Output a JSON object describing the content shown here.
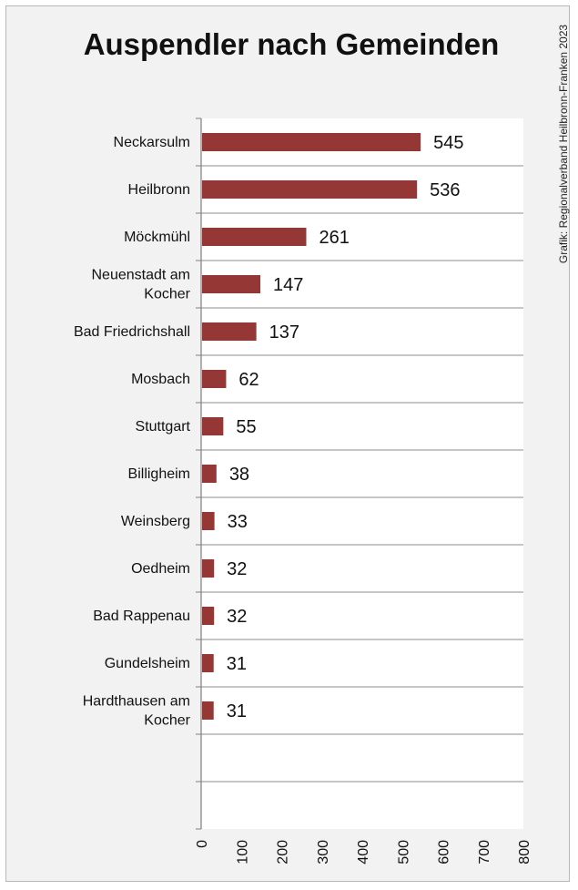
{
  "chart_data": {
    "type": "bar",
    "orientation": "horizontal",
    "title": "Auspendler nach Gemeinden",
    "source_note": "Grafik: Regionalverband Heilbronn-Franken 2023",
    "categories": [
      [
        "Neckarsulm"
      ],
      [
        "Heilbronn"
      ],
      [
        "Möckmühl"
      ],
      [
        "Neuenstadt am",
        "Kocher"
      ],
      [
        "Bad Friedrichshall"
      ],
      [
        "Mosbach"
      ],
      [
        "Stuttgart"
      ],
      [
        "Billigheim"
      ],
      [
        "Weinsberg"
      ],
      [
        "Oedheim"
      ],
      [
        "Bad Rappenau"
      ],
      [
        "Gundelsheim"
      ],
      [
        "Hardthausen am",
        "Kocher"
      ]
    ],
    "values": [
      545,
      536,
      261,
      147,
      137,
      62,
      55,
      38,
      33,
      32,
      32,
      31,
      31
    ],
    "value_labels": [
      "545",
      "536",
      "261",
      "147",
      "137",
      "62",
      "55",
      "38",
      "33",
      "32",
      "32",
      "31",
      "31"
    ],
    "slots": 15,
    "xlim": [
      0,
      800
    ],
    "xticks": [
      0,
      100,
      200,
      300,
      400,
      500,
      600,
      700,
      800
    ],
    "xlabel": "",
    "ylabel": "",
    "grid": "horizontal category separators",
    "bar_color": "#953735",
    "plot_background": "#ffffff",
    "chart_background": "#f2f2f2"
  }
}
